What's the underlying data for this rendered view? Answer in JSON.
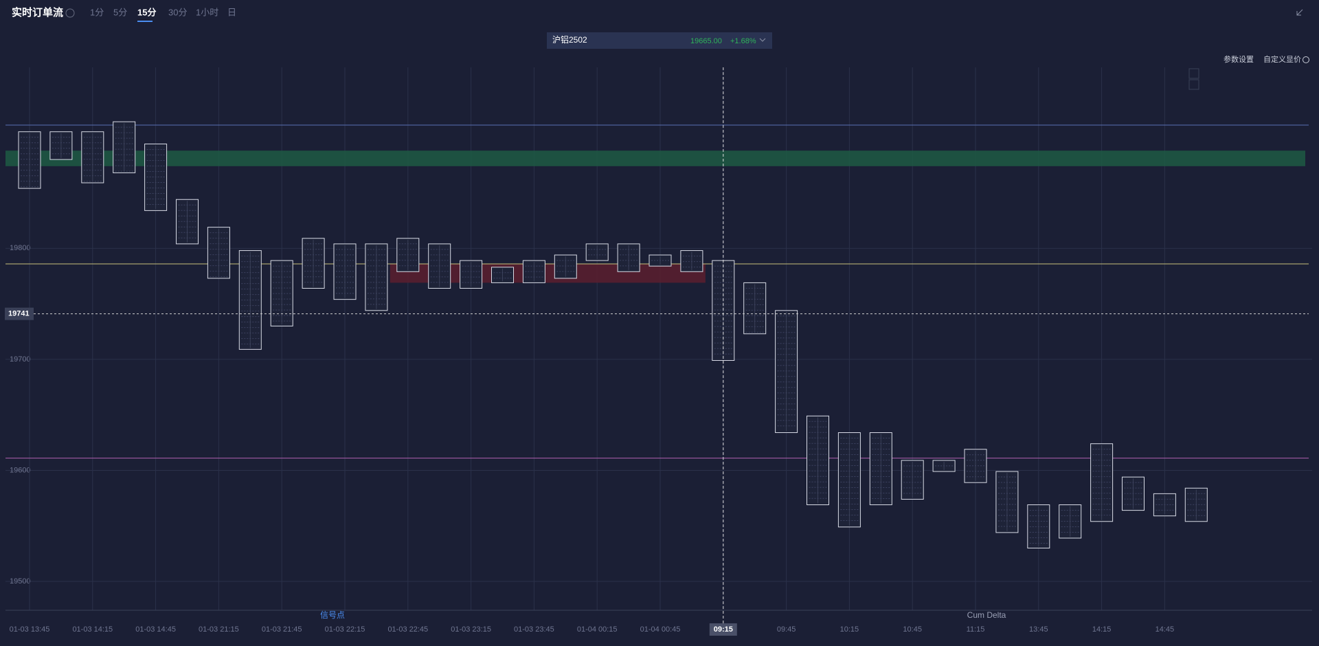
{
  "header": {
    "title": "实时订单流",
    "tabs": [
      "1分",
      "5分",
      "15分",
      "30分",
      "1小时",
      "日"
    ],
    "active_tab": 2,
    "ticker": {
      "name": "沪铝2502",
      "price": "19665.00",
      "change": "+1.68%"
    },
    "buttons": [
      "参数设置",
      "自定义显价"
    ]
  },
  "chart_data": {
    "type": "footprint",
    "categories": [
      "01-03 13:45",
      null,
      "01-03 14:15",
      null,
      "01-03 14:45",
      null,
      "01-03 21:15",
      null,
      "01-03 21:45",
      null,
      "01-03 22:15",
      null,
      "01-03 22:45",
      null,
      "01-03 23:15",
      null,
      "01-03 23:45",
      null,
      "01-04 00:15",
      null,
      "01-04 00:45",
      null,
      "09:15",
      null,
      "09:45",
      null,
      "10:15",
      null,
      "10:45",
      null,
      "11:15",
      null,
      "13:45",
      null,
      "14:15",
      null,
      "14:45",
      null
    ],
    "high": [
      19905,
      19905,
      19905,
      19914,
      19894,
      19844,
      19819,
      19798,
      19789,
      19809,
      19804,
      19804,
      19809,
      19804,
      19789,
      19783,
      19789,
      19794,
      19804,
      19804,
      19794,
      19798,
      19789,
      19769,
      19744,
      19649,
      19634,
      19634,
      19609,
      19609,
      19619,
      19599,
      19569,
      19569,
      19624,
      19594,
      19579,
      19584
    ],
    "low": [
      19854,
      19880,
      19859,
      19868,
      19834,
      19804,
      19773,
      19709,
      19730,
      19764,
      19754,
      19744,
      19779,
      19764,
      19764,
      19769,
      19769,
      19773,
      19789,
      19779,
      19784,
      19779,
      19699,
      19723,
      19634,
      19569,
      19549,
      19569,
      19574,
      19599,
      19589,
      19544,
      19530,
      19539,
      19554,
      19564,
      19559,
      19554
    ],
    "ylim": [
      19474,
      19963
    ],
    "yticks": [
      19500,
      19600,
      19700,
      19800
    ],
    "grid": true,
    "last_price": 19741,
    "crosshair_index": 22,
    "levels": [
      {
        "value": 19911,
        "color": "#5a6fb5"
      },
      {
        "value": 19786,
        "color": "#c8c27a"
      },
      {
        "value": 19611,
        "color": "#b060b0"
      }
    ],
    "bands": [
      {
        "from": 19874,
        "to": 19888,
        "color": "#1d5a43"
      },
      {
        "from": 19769,
        "to": 19786,
        "color": "#5a1e2e"
      }
    ],
    "annotations": [
      "信号点",
      "Cum Delta"
    ]
  }
}
